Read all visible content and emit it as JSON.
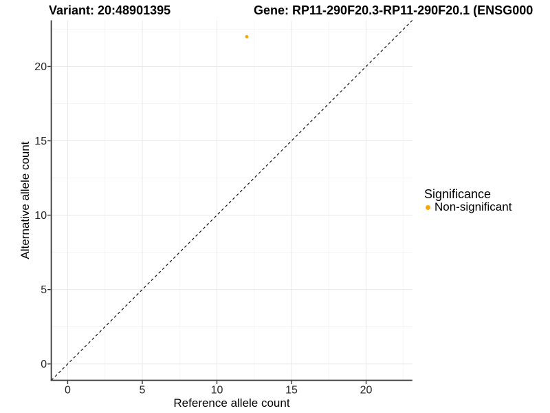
{
  "chart_data": {
    "type": "scatter",
    "title_left": "Variant: 20:48901395",
    "title_right": "Gene: RP11-290F20.3-RP11-290F20.1 (ENSG000",
    "xlabel": "Reference allele count",
    "ylabel": "Alternative allele count",
    "xlim": [
      -1.1,
      23.1
    ],
    "ylim": [
      -1.1,
      23.1
    ],
    "xticks": [
      0,
      5,
      10,
      15,
      20
    ],
    "yticks": [
      0,
      5,
      10,
      15,
      20
    ],
    "xminor": [
      2.5,
      7.5,
      12.5,
      17.5,
      22.5
    ],
    "yminor": [
      2.5,
      7.5,
      12.5,
      17.5,
      22.5
    ],
    "grid": true,
    "legend_position": "right",
    "points": [
      {
        "x": 12,
        "y": 22,
        "series": "Non-significant"
      }
    ],
    "series": [
      {
        "name": "Non-significant",
        "color": "#FFA500"
      }
    ],
    "identity_line": {
      "style": "dashed",
      "color": "#111111",
      "slope": 1,
      "intercept": 0
    }
  },
  "legend": {
    "title": "Significance",
    "items": [
      {
        "label": "Non-significant",
        "color": "#FFA500"
      }
    ]
  },
  "colors": {
    "background": "#ffffff",
    "point": "#FFA500",
    "grid_major": "#e9e9e9",
    "grid_minor": "#f4f4f4",
    "axis_line": "#3a3a3a",
    "tick_mark": "#333333",
    "tick_label": "#262626",
    "text": "#000000"
  }
}
